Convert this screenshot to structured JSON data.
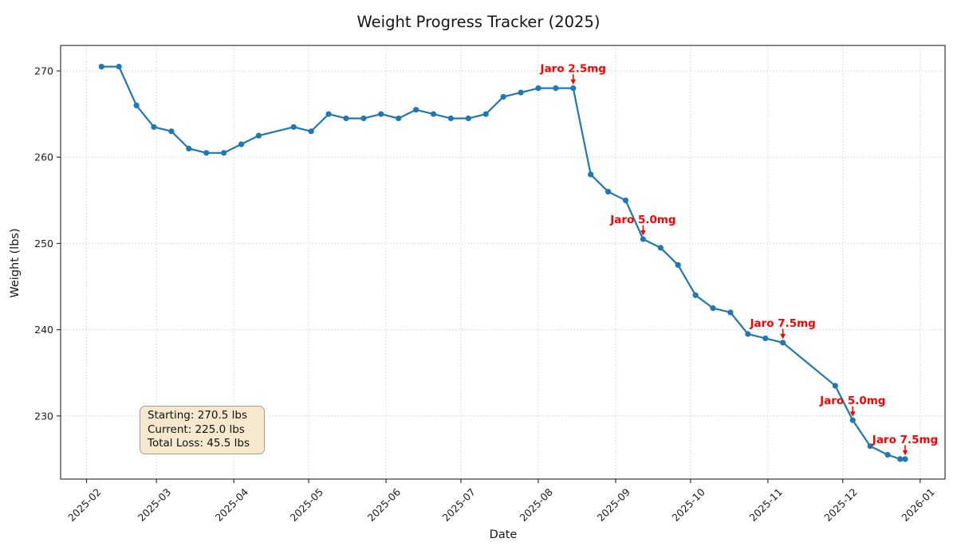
{
  "chart_data": {
    "type": "line",
    "title": "Weight Progress Tracker (2025)",
    "xlabel": "Date",
    "ylabel": "Weight (lbs)",
    "grid": true,
    "legend_position": "none",
    "line_color": "#1f77b4",
    "annotation_color": "#ff0000",
    "ylim": [
      223,
      273
    ],
    "y_ticks": [
      230,
      240,
      250,
      260,
      270
    ],
    "x_ticks": [
      {
        "date": "2025-02-01",
        "label": "2025-02"
      },
      {
        "date": "2025-03-01",
        "label": "2025-03"
      },
      {
        "date": "2025-04-01",
        "label": "2025-04"
      },
      {
        "date": "2025-05-01",
        "label": "2025-05"
      },
      {
        "date": "2025-06-01",
        "label": "2025-06"
      },
      {
        "date": "2025-07-01",
        "label": "2025-07"
      },
      {
        "date": "2025-08-01",
        "label": "2025-08"
      },
      {
        "date": "2025-09-01",
        "label": "2025-09"
      },
      {
        "date": "2025-10-01",
        "label": "2025-10"
      },
      {
        "date": "2025-11-01",
        "label": "2025-11"
      },
      {
        "date": "2025-12-01",
        "label": "2025-12"
      },
      {
        "date": "2026-01-01",
        "label": "2026-01"
      }
    ],
    "series": [
      {
        "name": "Weight",
        "color": "#1f77b4",
        "marker": "circle",
        "points": [
          {
            "date": "2025-02-07",
            "weight": 270.5
          },
          {
            "date": "2025-02-14",
            "weight": 270.5
          },
          {
            "date": "2025-02-21",
            "weight": 266.0
          },
          {
            "date": "2025-02-28",
            "weight": 263.5
          },
          {
            "date": "2025-03-07",
            "weight": 263.0
          },
          {
            "date": "2025-03-14",
            "weight": 261.0
          },
          {
            "date": "2025-03-21",
            "weight": 260.5
          },
          {
            "date": "2025-03-28",
            "weight": 260.5
          },
          {
            "date": "2025-04-04",
            "weight": 261.5
          },
          {
            "date": "2025-04-11",
            "weight": 262.5
          },
          {
            "date": "2025-04-25",
            "weight": 263.5
          },
          {
            "date": "2025-05-02",
            "weight": 263.0
          },
          {
            "date": "2025-05-09",
            "weight": 265.0
          },
          {
            "date": "2025-05-16",
            "weight": 264.5
          },
          {
            "date": "2025-05-23",
            "weight": 264.5
          },
          {
            "date": "2025-05-30",
            "weight": 265.0
          },
          {
            "date": "2025-06-06",
            "weight": 264.5
          },
          {
            "date": "2025-06-13",
            "weight": 265.5
          },
          {
            "date": "2025-06-20",
            "weight": 265.0
          },
          {
            "date": "2025-06-27",
            "weight": 264.5
          },
          {
            "date": "2025-07-04",
            "weight": 264.5
          },
          {
            "date": "2025-07-11",
            "weight": 265.0
          },
          {
            "date": "2025-07-18",
            "weight": 267.0
          },
          {
            "date": "2025-07-25",
            "weight": 267.5
          },
          {
            "date": "2025-08-01",
            "weight": 268.0
          },
          {
            "date": "2025-08-08",
            "weight": 268.0
          },
          {
            "date": "2025-08-15",
            "weight": 268.0
          },
          {
            "date": "2025-08-22",
            "weight": 258.0
          },
          {
            "date": "2025-08-29",
            "weight": 256.0
          },
          {
            "date": "2025-09-05",
            "weight": 255.0
          },
          {
            "date": "2025-09-12",
            "weight": 250.5
          },
          {
            "date": "2025-09-19",
            "weight": 249.5
          },
          {
            "date": "2025-09-26",
            "weight": 247.5
          },
          {
            "date": "2025-10-03",
            "weight": 244.0
          },
          {
            "date": "2025-10-10",
            "weight": 242.5
          },
          {
            "date": "2025-10-17",
            "weight": 242.0
          },
          {
            "date": "2025-10-24",
            "weight": 239.5
          },
          {
            "date": "2025-10-31",
            "weight": 239.0
          },
          {
            "date": "2025-11-07",
            "weight": 238.5
          },
          {
            "date": "2025-11-28",
            "weight": 233.5
          },
          {
            "date": "2025-12-05",
            "weight": 229.5
          },
          {
            "date": "2025-12-12",
            "weight": 226.5
          },
          {
            "date": "2025-12-19",
            "weight": 225.5
          },
          {
            "date": "2025-12-24",
            "weight": 225.0
          },
          {
            "date": "2025-12-26",
            "weight": 225.0
          }
        ]
      }
    ],
    "annotations": [
      {
        "label": "Jaro 2.5mg",
        "date": "2025-08-15",
        "weight": 268.0
      },
      {
        "label": "Jaro 5.0mg",
        "date": "2025-09-12",
        "weight": 250.5
      },
      {
        "label": "Jaro 7.5mg",
        "date": "2025-11-07",
        "weight": 238.5
      },
      {
        "label": "Jaro 5.0mg",
        "date": "2025-12-05",
        "weight": 229.5
      },
      {
        "label": "Jaro 7.5mg",
        "date": "2025-12-26",
        "weight": 225.0
      }
    ],
    "stats_box": {
      "lines": [
        "Starting: 270.5 lbs",
        "Current: 225.0 lbs",
        "Total Loss: 45.5 lbs"
      ],
      "fill": "#f5e8cd",
      "border": "#a79f8d"
    }
  }
}
